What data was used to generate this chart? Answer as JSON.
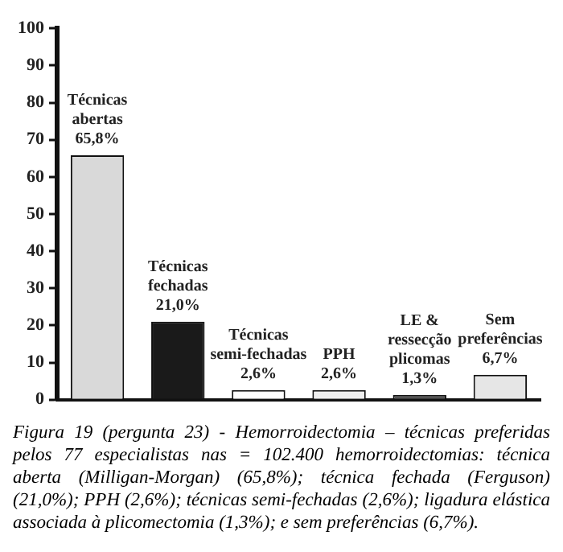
{
  "chart_data": {
    "type": "bar",
    "categories": [
      "Técnicas abertas",
      "Técnicas fechadas",
      "Técnicas semi-fechadas",
      "PPH",
      "LE & ressecção plicomas",
      "Sem preferências"
    ],
    "values": [
      65.8,
      21.0,
      2.6,
      2.6,
      1.3,
      6.7
    ],
    "value_labels": [
      "65,8%",
      "21,0%",
      "2,6%",
      "2,6%",
      "1,3%",
      "6,7%"
    ],
    "colors": [
      "#d9d9d9",
      "#1a1a1a",
      "#ffffff",
      "#eeeeee",
      "#555555",
      "#e6e6e6"
    ],
    "ylim": [
      0,
      100
    ],
    "yticks": [
      0,
      10,
      20,
      30,
      40,
      50,
      60,
      70,
      80,
      90,
      100
    ],
    "grid": false,
    "legend": false,
    "tick_labels": "y",
    "annotations": [
      "Figura 19 (pergunta 23) - Hemorroidectomia – técnicas preferidas pelos 77 especialistas nas = 102.400 hemorroidectomias: técnica aberta (Milligan-Morgan) (65,8%); técnica fechada (Ferguson) (21,0%); PPH (2,6%); técnicas semi-fechadas (2,6%); ligadura elástica associada à plicomectomia (1,3%); e sem preferências (6,7%)."
    ]
  }
}
